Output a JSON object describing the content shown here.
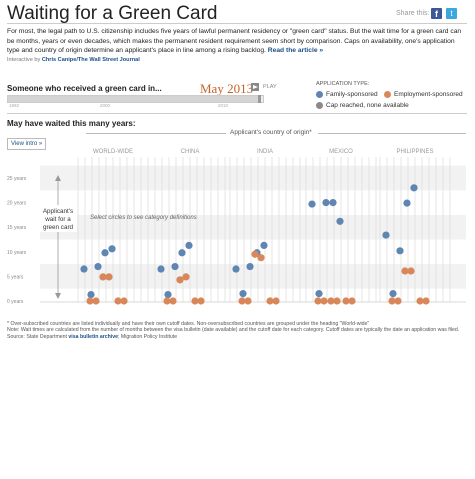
{
  "header": {
    "title": "Waiting for a Green Card",
    "share_label": "Share this:",
    "facebook_glyph": "f",
    "twitter_glyph": "t",
    "intro": "For most, the legal path to U.S. citizenship includes five years of lawful permanent residency or \"green card\" status. But the wait time for a green card can be months, years or even decades, which makes the permanent resident requirement seem short by comparison. Caps on availability, one's application type and country of origin determine an applicant's place in line among a rising backlog.",
    "read_more": "Read the article »",
    "credit_prefix": "Interactive by ",
    "credit_name": "Chris Canipe/The Wall Street Journal"
  },
  "controls": {
    "received_label": "Someone who received a green card in...",
    "selected_year": "May 2013",
    "play_label": "PLAY",
    "timeline_ticks": [
      "1992",
      "2000",
      "2010"
    ],
    "timeline_position": 0.99
  },
  "legend": {
    "heading": "APPLICATION TYPE:",
    "items": [
      {
        "label": "Family-sponsored",
        "color": "#5f86b3"
      },
      {
        "label": "Employment-sponsored",
        "color": "#d8875a"
      },
      {
        "label": "Cap reached, none available",
        "color": "#8a8a8a"
      }
    ]
  },
  "chart_labels": {
    "waited_label": "May have waited this many years:",
    "origin_label": "Applicant's country of origin*",
    "view_intro": "View intro »",
    "select_hint": "Select circles to see category definitions",
    "wait_annotation": [
      "Applicant's",
      "wait for a",
      "green card"
    ]
  },
  "footnote": {
    "line1": "* Over-subscribed countries are listed individually and have their own cutoff dates. Non-oversubscribed countries are grouped under the heading \"World-wide\"",
    "line2": "Note: Wait times are calculated from the number of months between the visa bulletin (date available) and the cutoff date for each category. Cutoff dates are typically the date an application was filed.",
    "source_prefix": "Source: State Department ",
    "source_link": "visa bulletin archive",
    "source_suffix": "; Migration Policy Institute"
  },
  "chart_data": {
    "type": "scatter",
    "title": "",
    "ylabel": "Applicant's wait for a green card",
    "ylim": [
      0,
      30
    ],
    "y_ticks": [
      {
        "value": 0,
        "label": "0 years"
      },
      {
        "value": 5,
        "label": "5 years"
      },
      {
        "value": 10,
        "label": "10 years"
      },
      {
        "value": 15,
        "label": "15 years"
      },
      {
        "value": 20,
        "label": "20 years"
      },
      {
        "value": 25,
        "label": "25 years"
      }
    ],
    "categories": [
      "WORLD-WIDE",
      "CHINA",
      "INDIA",
      "MEXICO",
      "PHILIPPINES"
    ],
    "colors": {
      "family": "#5f86b3",
      "employment": "#d8875a"
    },
    "series": [
      {
        "name": "Family-sponsored",
        "type": "family",
        "groups": [
          [
            6.5,
            1.3,
            7.0,
            9.8,
            10.6
          ],
          [
            6.5,
            1.3,
            7.0,
            9.8,
            11.3
          ],
          [
            6.5,
            1.5,
            7.0,
            9.8,
            11.3
          ],
          [
            19.7,
            1.5,
            20.0,
            20.0,
            16.2
          ],
          [
            13.4,
            1.5,
            10.2,
            19.9,
            23.0
          ]
        ]
      },
      {
        "name": "Employment-sponsored",
        "type": "employment",
        "groups": [
          [
            0,
            0,
            4.9,
            4.9,
            0,
            0
          ],
          [
            0,
            0,
            4.3,
            4.9,
            0,
            0
          ],
          [
            0,
            0,
            9.5,
            8.8,
            0,
            0
          ],
          [
            0,
            0,
            0,
            0,
            0,
            0
          ],
          [
            0,
            0,
            6.1,
            6.1,
            0,
            0
          ]
        ]
      }
    ]
  }
}
